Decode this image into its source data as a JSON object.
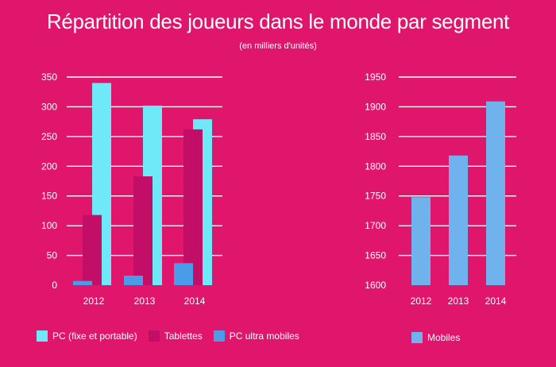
{
  "title": "Répartition des joueurs dans le monde par segment",
  "subtitle": "(en milliers d'unités)",
  "colors": {
    "background": "#e0166c",
    "pc": "#6fe9f7",
    "tablettes": "#c20e66",
    "pc_ultra": "#4a9be8",
    "mobiles": "#6fb2ee"
  },
  "chart_data": [
    {
      "type": "bar",
      "categories": [
        "2012",
        "2013",
        "2014"
      ],
      "series": [
        {
          "name": "PC (fixe et portable)",
          "values": [
            340,
            302,
            279
          ]
        },
        {
          "name": "Tablettes",
          "values": [
            118,
            183,
            262
          ]
        },
        {
          "name": "PC ultra mobiles",
          "values": [
            7,
            16,
            37
          ]
        }
      ],
      "ylim": [
        0,
        350
      ],
      "yticks": [
        0,
        50,
        100,
        150,
        200,
        250,
        300,
        350
      ],
      "grid": true,
      "legend": "bottom"
    },
    {
      "type": "bar",
      "categories": [
        "2012",
        "2013",
        "2014"
      ],
      "series": [
        {
          "name": "Mobiles",
          "values": [
            1748,
            1818,
            1909
          ]
        }
      ],
      "ylim": [
        1600,
        1950
      ],
      "yticks": [
        1600,
        1650,
        1700,
        1750,
        1800,
        1850,
        1900,
        1950
      ],
      "grid": true,
      "legend": "bottom"
    }
  ]
}
